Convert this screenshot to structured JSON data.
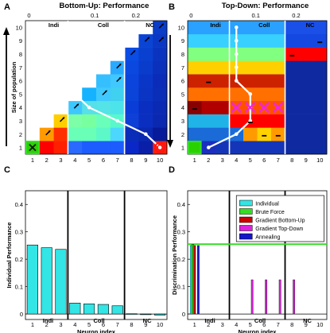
{
  "chart_data": [
    {
      "panel": "A",
      "type": "heatmap",
      "title": "Bottom-Up: Performance",
      "ylabel": "Size of population",
      "x_ticks_bottom": [
        "1",
        "2",
        "3",
        "4",
        "5",
        "6",
        "7",
        "8",
        "9",
        "10"
      ],
      "y_ticks": [
        "1",
        "2",
        "3",
        "4",
        "5",
        "6",
        "7",
        "8",
        "9",
        "10"
      ],
      "x_ticks_top": [
        "0",
        "0.1",
        "0.2"
      ],
      "group_labels": [
        "Indi",
        "Coll",
        "NC"
      ],
      "grid": [
        [
          "#2ad100",
          "#ff0000",
          "#ff2000",
          "#2a6aff",
          "#1d5cff",
          "#1d5cff",
          "#1d5cff",
          "#0a28c8",
          "#0a1fa8",
          "#ff2000"
        ],
        [
          null,
          "#ff9b00",
          "#ff3000",
          "#69ffb6",
          "#69ffb6",
          "#5cf8c8",
          "#4cd7ff",
          "#0a2db9",
          "#0a28b0",
          "#071a9a"
        ],
        [
          null,
          null,
          "#ffce00",
          "#7cffa6",
          "#78ff9f",
          "#69ffba",
          "#58f8cc",
          "#0e3fd6",
          "#0a2fc0",
          "#0a28b0"
        ],
        [
          null,
          null,
          null,
          "#3cc8ff",
          "#58e0e8",
          "#54e3e6",
          "#4ce3ea",
          "#0a3cd8",
          "#0a2ec0",
          "#0a2ab4"
        ],
        [
          null,
          null,
          null,
          null,
          "#15b3ff",
          "#40c9ff",
          "#40d0f0",
          "#0a44d8",
          "#0a34c4",
          "#0a2eb8"
        ],
        [
          null,
          null,
          null,
          null,
          null,
          "#36bfff",
          "#40c8ff",
          "#0a44dc",
          "#0a36c8",
          "#0a2cb8"
        ],
        [
          null,
          null,
          null,
          null,
          null,
          null,
          "#2aaaff",
          "#0a48e0",
          "#0a3ccc",
          "#0a30bc"
        ],
        [
          null,
          null,
          null,
          null,
          null,
          null,
          null,
          "#0a4ce4",
          "#0a40d0",
          "#0a34c0"
        ],
        [
          null,
          null,
          null,
          null,
          null,
          null,
          null,
          null,
          "#0a44d4",
          "#0a38c4"
        ],
        [
          null,
          null,
          null,
          null,
          null,
          null,
          null,
          null,
          null,
          "#0a3cc8"
        ]
      ],
      "brute_force_cell": [
        1,
        1
      ],
      "bottom_up_path": [
        [
          1,
          10
        ],
        [
          2,
          9
        ],
        [
          3,
          8
        ],
        [
          4,
          7
        ],
        [
          4,
          6
        ],
        [
          4,
          5
        ],
        [
          5,
          4
        ],
        [
          7,
          3
        ],
        [
          9,
          2
        ],
        [
          10,
          1
        ]
      ],
      "arrow_marks": [
        [
          2,
          2
        ],
        [
          3,
          3
        ],
        [
          4,
          4
        ],
        [
          6,
          5
        ],
        [
          7,
          6
        ],
        [
          7,
          7
        ],
        [
          8,
          8
        ],
        [
          9,
          9
        ],
        [
          10,
          9
        ],
        [
          10,
          10
        ]
      ],
      "x_marker": [
        1,
        1
      ],
      "circle_marker": [
        10,
        1
      ]
    },
    {
      "panel": "B",
      "type": "heatmap",
      "title": "Top-Down: Performance",
      "x_ticks_bottom": [
        "1",
        "2",
        "3",
        "4",
        "5",
        "6",
        "7",
        "8",
        "9",
        "10"
      ],
      "y_ticks": [
        "1",
        "2",
        "3",
        "4",
        "5",
        "6",
        "7",
        "8",
        "9",
        "10"
      ],
      "x_ticks_top": [
        "0",
        "0.1",
        "0.2"
      ],
      "group_labels": [
        "Indi",
        "Coll",
        "NC"
      ],
      "rows": [
        [
          "#2ad100",
          "#1a2fc0",
          "#1535b8",
          "#1535b8",
          "#1535b8",
          "#1535b8",
          "#1535b8",
          "#0f2aa0",
          "#0f2aa0",
          "#0f2aa0"
        ],
        [
          "#1a6bd8",
          "#1a6bd8",
          "#1a6bd8",
          "#1a6bd8",
          "#ff9b00",
          "#ffd200",
          "#ff9b00",
          "#0f2aa0",
          "#0f2aa0",
          "#0f2aa0"
        ],
        [
          "#20b3e8",
          "#20b3e8",
          "#20b3e8",
          "#ff0000",
          "#ff0000",
          "#ff0000",
          "#ff0000",
          "#0f2aa0",
          "#0f2aa0",
          "#0f2aa0"
        ],
        [
          "#8a0000",
          "#b00000",
          "#b00000",
          "#ff5000",
          "#ff5000",
          "#ff5000",
          "#ff5000",
          "#0f2aa0",
          "#0f2aa0",
          "#0f2aa0"
        ],
        [
          "#ff7000",
          "#ff7000",
          "#ff7000",
          "#ff7000",
          "#ff7000",
          "#ff7000",
          "#ff7000",
          "#0f2aa0",
          "#0f2aa0",
          "#0f2aa0"
        ],
        [
          "#cc2200",
          "#cc2200",
          "#cc2200",
          "#cc2200",
          "#cc2200",
          "#cc2200",
          "#cc2200",
          "#0f2aa0",
          "#0f2aa0",
          "#0f2aa0"
        ],
        [
          "#ffd000",
          "#ffd000",
          "#ffd000",
          "#ffd000",
          "#ffd000",
          "#ffd000",
          "#ffd000",
          "#0f2aa0",
          "#0f2aa0",
          "#0f2aa0"
        ],
        [
          "#80ff80",
          "#80ff80",
          "#80ff80",
          "#80ff80",
          "#80ff80",
          "#80ff80",
          "#80ff80",
          "#ff0000",
          "#ff0000",
          "#ff0000"
        ],
        [
          "#38d0ff",
          "#38d0ff",
          "#38d0ff",
          "#38d0ff",
          "#38d0ff",
          "#38d0ff",
          "#38d0ff",
          "#1548e0",
          "#1548e0",
          "#1548e0"
        ],
        [
          "#2aa0ff",
          "#2aa0ff",
          "#2aa0ff",
          "#2aa0ff",
          "#2aa0ff",
          "#2aa0ff",
          "#2aa0ff",
          "#1a50e8",
          "#1a50e8",
          "#1a50e8"
        ]
      ],
      "brute_force_cell": [
        1,
        1
      ],
      "top_down_path": [
        [
          2,
          1
        ],
        [
          4,
          2
        ],
        [
          5,
          3
        ],
        [
          5,
          4
        ],
        [
          5,
          5
        ],
        [
          4,
          6
        ],
        [
          4,
          7
        ],
        [
          4,
          8
        ],
        [
          4,
          9
        ],
        [
          4,
          10
        ]
      ],
      "x_markers": [
        [
          4,
          4
        ],
        [
          5,
          4
        ],
        [
          6,
          4
        ],
        [
          7,
          4
        ]
      ],
      "dash_marks": [
        [
          1,
          4
        ],
        [
          2,
          6
        ],
        [
          5,
          3
        ],
        [
          6,
          2
        ],
        [
          7,
          2
        ],
        [
          8,
          8
        ],
        [
          10,
          9
        ]
      ]
    },
    {
      "panel": "C",
      "type": "bar",
      "xlabel": "Neuron index",
      "ylabel": "Individual Performance",
      "categories": [
        "1",
        "2",
        "3",
        "4",
        "5",
        "6",
        "7",
        "8",
        "9",
        "10"
      ],
      "values": [
        0.252,
        0.242,
        0.236,
        0.04,
        0.037,
        0.035,
        0.03,
        0.001,
        -0.001,
        -0.004
      ],
      "ylim": [
        -0.02,
        0.45
      ],
      "y_ticks": [
        "0",
        "0.1",
        "0.2",
        "0.3",
        "0.4"
      ],
      "group_labels": [
        "Indi",
        "Coll",
        "NC"
      ],
      "color": "#33e5e5"
    },
    {
      "panel": "D",
      "type": "bar",
      "xlabel": "Neuron index",
      "ylabel": "Discrimination Performance",
      "categories": [
        "1",
        "2",
        "3",
        "4",
        "5",
        "6",
        "7",
        "8",
        "9",
        "10"
      ],
      "ylim": [
        -0.02,
        0.45
      ],
      "y_ticks": [
        "0",
        "0.1",
        "0.2",
        "0.3",
        "0.4"
      ],
      "group_labels": [
        "Indi",
        "Coll",
        "NC"
      ],
      "hline": 0.255,
      "series": [
        {
          "name": "Individual",
          "color": "#33e5e5",
          "values": [
            0.25,
            0,
            0,
            0,
            0,
            0,
            0,
            0,
            0,
            0
          ]
        },
        {
          "name": "Brute Force",
          "color": "#33dd22",
          "values": [
            0.255,
            0,
            0,
            0,
            0,
            0,
            0,
            0,
            0,
            0
          ]
        },
        {
          "name": "Gradient Bottom-Up",
          "color": "#cc0000",
          "values": [
            0.25,
            0,
            0,
            0,
            0,
            0,
            0,
            0,
            0,
            0
          ]
        },
        {
          "name": "Gradient Top-Down",
          "color": "#dd22dd",
          "values": [
            0,
            0,
            0,
            0,
            0.125,
            0.125,
            0.125,
            0.125,
            0,
            0
          ]
        },
        {
          "name": "Annealing",
          "color": "#1515cc",
          "values": [
            0.25,
            0,
            0,
            0,
            0,
            0,
            0,
            0,
            0,
            0
          ]
        }
      ]
    }
  ]
}
